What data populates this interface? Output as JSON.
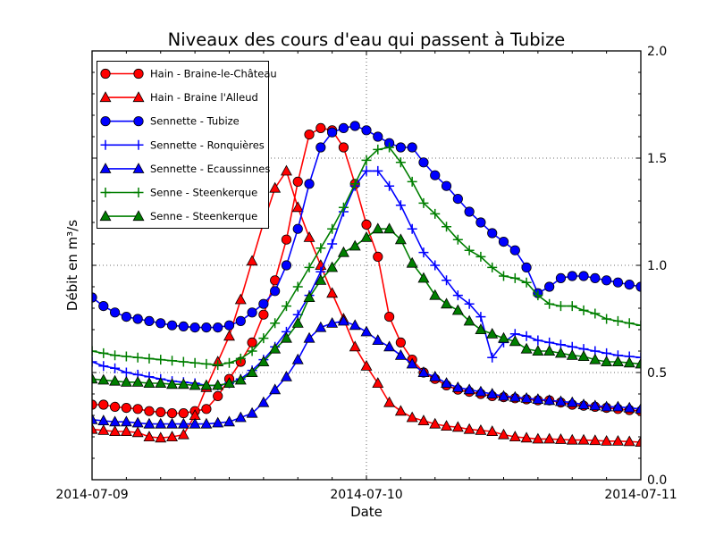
{
  "figure": {
    "background": "#ffffff"
  },
  "chart_data": {
    "type": "line",
    "title": "Niveaux des cours d'eau qui passent à Tubize",
    "xlabel": "Date",
    "ylabel": "Débit en m³/s",
    "ylim": [
      0.0,
      2.0
    ],
    "x_unit": "hours after 2014-07-09 00:00",
    "x_range_hours": [
      0,
      48
    ],
    "x_major_ticks": [
      {
        "hour": 0,
        "label": "2014-07-09"
      },
      {
        "hour": 24,
        "label": "2014-07-10"
      },
      {
        "hour": 48,
        "label": "2014-07-11"
      }
    ],
    "x_minor_tick_step_hours": 3,
    "y_major_ticks": [
      {
        "value": 0.0,
        "label": "0.0"
      },
      {
        "value": 0.5,
        "label": "0.5"
      },
      {
        "value": 1.0,
        "label": "1.0"
      },
      {
        "value": 1.5,
        "label": "1.5"
      },
      {
        "value": 2.0,
        "label": "2.0"
      }
    ],
    "y_minor_tick_step": 0.1,
    "y_tick_label_side": "right",
    "grid": {
      "style": "dotted",
      "horizontal_at": [
        0.5,
        1.0,
        1.5
      ],
      "vertical_at_hours": [
        24
      ]
    },
    "legend_position": "upper left",
    "series": [
      {
        "id": "hain-braine-le-chateau",
        "label": "Hain - Braine-le-Château",
        "color": "#ff0000",
        "marker": "circle",
        "values": [
          0.35,
          0.35,
          0.34,
          0.335,
          0.33,
          0.32,
          0.315,
          0.31,
          0.31,
          0.32,
          0.33,
          0.39,
          0.47,
          0.55,
          0.64,
          0.77,
          0.93,
          1.12,
          1.39,
          1.61,
          1.64,
          1.63,
          1.55,
          1.38,
          1.19,
          1.04,
          0.76,
          0.64,
          0.56,
          0.5,
          0.47,
          0.44,
          0.42,
          0.41,
          0.4,
          0.39,
          0.385,
          0.38,
          0.375,
          0.37,
          0.37,
          0.36,
          0.35,
          0.345,
          0.34,
          0.335,
          0.33,
          0.325,
          0.32
        ]
      },
      {
        "id": "hain-braine-l-alleud",
        "label": "Hain - Braine l'Alleud",
        "color": "#ff0000",
        "marker": "triangle",
        "values": [
          0.235,
          0.23,
          0.225,
          0.225,
          0.22,
          0.2,
          0.195,
          0.2,
          0.21,
          0.3,
          0.43,
          0.55,
          0.67,
          0.84,
          1.02,
          1.2,
          1.36,
          1.44,
          1.27,
          1.13,
          1.0,
          0.87,
          0.75,
          0.62,
          0.53,
          0.45,
          0.36,
          0.32,
          0.29,
          0.275,
          0.26,
          0.25,
          0.245,
          0.235,
          0.23,
          0.225,
          0.21,
          0.2,
          0.195,
          0.19,
          0.19,
          0.188,
          0.185,
          0.185,
          0.183,
          0.18,
          0.18,
          0.178,
          0.175
        ]
      },
      {
        "id": "sennette-tubize",
        "label": "Sennette - Tubize",
        "color": "#0000ff",
        "marker": "circle",
        "values": [
          0.85,
          0.81,
          0.78,
          0.76,
          0.75,
          0.74,
          0.73,
          0.72,
          0.715,
          0.71,
          0.71,
          0.71,
          0.72,
          0.74,
          0.78,
          0.82,
          0.88,
          1.0,
          1.17,
          1.38,
          1.55,
          1.62,
          1.64,
          1.65,
          1.63,
          1.6,
          1.57,
          1.55,
          1.55,
          1.48,
          1.42,
          1.37,
          1.31,
          1.25,
          1.2,
          1.15,
          1.11,
          1.07,
          0.99,
          0.87,
          0.9,
          0.94,
          0.95,
          0.95,
          0.94,
          0.93,
          0.92,
          0.91,
          0.9
        ]
      },
      {
        "id": "sennette-ronquieres",
        "label": "Sennette - Ronquières",
        "color": "#0000ff",
        "marker": "plus",
        "values": [
          0.55,
          0.53,
          0.52,
          0.5,
          0.49,
          0.48,
          0.47,
          0.46,
          0.455,
          0.45,
          0.44,
          0.44,
          0.45,
          0.47,
          0.51,
          0.56,
          0.62,
          0.69,
          0.77,
          0.86,
          0.97,
          1.1,
          1.25,
          1.37,
          1.44,
          1.44,
          1.37,
          1.28,
          1.17,
          1.06,
          1.0,
          0.93,
          0.86,
          0.82,
          0.76,
          0.57,
          0.64,
          0.68,
          0.67,
          0.65,
          0.64,
          0.63,
          0.62,
          0.61,
          0.6,
          0.59,
          0.58,
          0.575,
          0.57
        ]
      },
      {
        "id": "sennette-ecaussinnes",
        "label": "Sennette - Ecaussinnes",
        "color": "#0000ff",
        "marker": "triangle",
        "values": [
          0.28,
          0.275,
          0.27,
          0.27,
          0.265,
          0.26,
          0.26,
          0.26,
          0.26,
          0.26,
          0.26,
          0.265,
          0.27,
          0.29,
          0.31,
          0.36,
          0.42,
          0.48,
          0.56,
          0.66,
          0.71,
          0.73,
          0.74,
          0.72,
          0.69,
          0.65,
          0.62,
          0.58,
          0.54,
          0.5,
          0.48,
          0.45,
          0.43,
          0.42,
          0.41,
          0.4,
          0.39,
          0.385,
          0.38,
          0.375,
          0.37,
          0.365,
          0.36,
          0.35,
          0.345,
          0.34,
          0.34,
          0.335,
          0.33
        ]
      },
      {
        "id": "senne-steenkerque-1",
        "label": "Senne - Steenkerque",
        "color": "#007f00",
        "marker": "plus",
        "values": [
          0.6,
          0.59,
          0.58,
          0.575,
          0.57,
          0.565,
          0.56,
          0.555,
          0.55,
          0.545,
          0.54,
          0.535,
          0.545,
          0.565,
          0.6,
          0.66,
          0.73,
          0.81,
          0.9,
          0.99,
          1.08,
          1.17,
          1.27,
          1.38,
          1.49,
          1.54,
          1.55,
          1.48,
          1.39,
          1.29,
          1.24,
          1.18,
          1.12,
          1.07,
          1.04,
          0.99,
          0.95,
          0.94,
          0.92,
          0.86,
          0.82,
          0.81,
          0.81,
          0.79,
          0.775,
          0.75,
          0.74,
          0.73,
          0.72
        ]
      },
      {
        "id": "senne-steenkerque-2",
        "label": "Senne - Steenkerque",
        "color": "#007f00",
        "marker": "triangle",
        "values": [
          0.47,
          0.465,
          0.46,
          0.455,
          0.455,
          0.45,
          0.45,
          0.445,
          0.445,
          0.44,
          0.44,
          0.44,
          0.45,
          0.465,
          0.5,
          0.55,
          0.61,
          0.66,
          0.73,
          0.85,
          0.93,
          0.99,
          1.06,
          1.09,
          1.13,
          1.17,
          1.17,
          1.12,
          1.01,
          0.94,
          0.86,
          0.82,
          0.79,
          0.74,
          0.7,
          0.68,
          0.66,
          0.645,
          0.61,
          0.6,
          0.6,
          0.59,
          0.58,
          0.575,
          0.56,
          0.55,
          0.55,
          0.545,
          0.54
        ]
      }
    ]
  }
}
